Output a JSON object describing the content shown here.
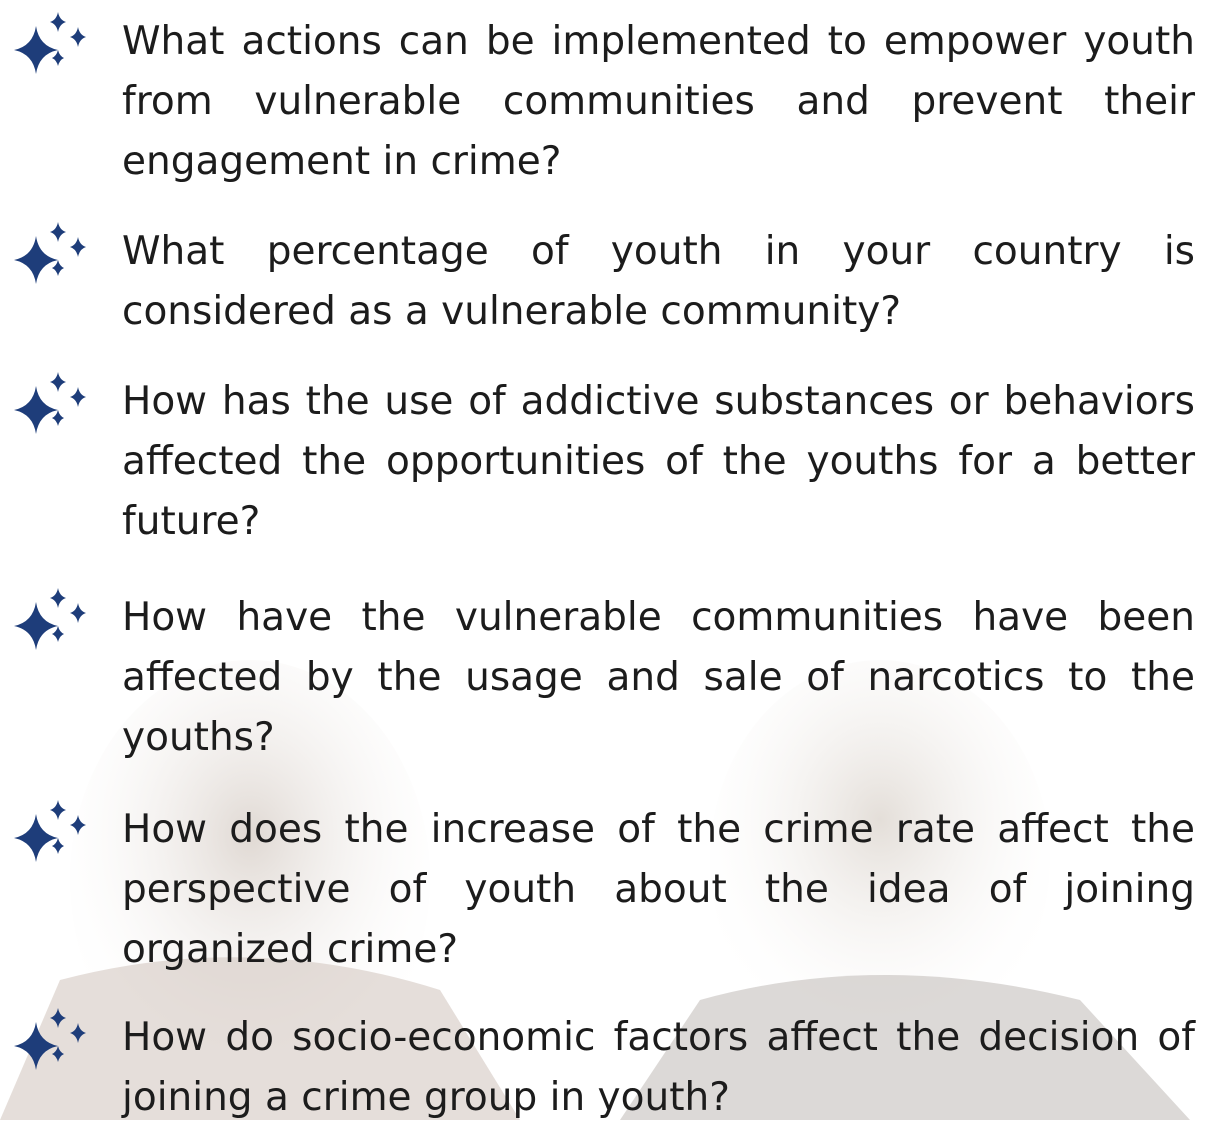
{
  "questions": [
    "What actions can be implemented to empower youth from vulnerable communities and prevent their engagement in crime?",
    "What percentage of youth in your country is considered as a vulnerable community?",
    "How has the use of addictive substances or behaviors affected the opportunities of the youths for a better future?",
    "How have the vulnerable communities have been affected by the usage and sale of narcotics to the youths?",
    "How does the increase of the crime rate affect the perspective of youth about the idea of joining organized crime?",
    "How do socio-economic factors affect the decision of joining a crime group in youth?"
  ]
}
